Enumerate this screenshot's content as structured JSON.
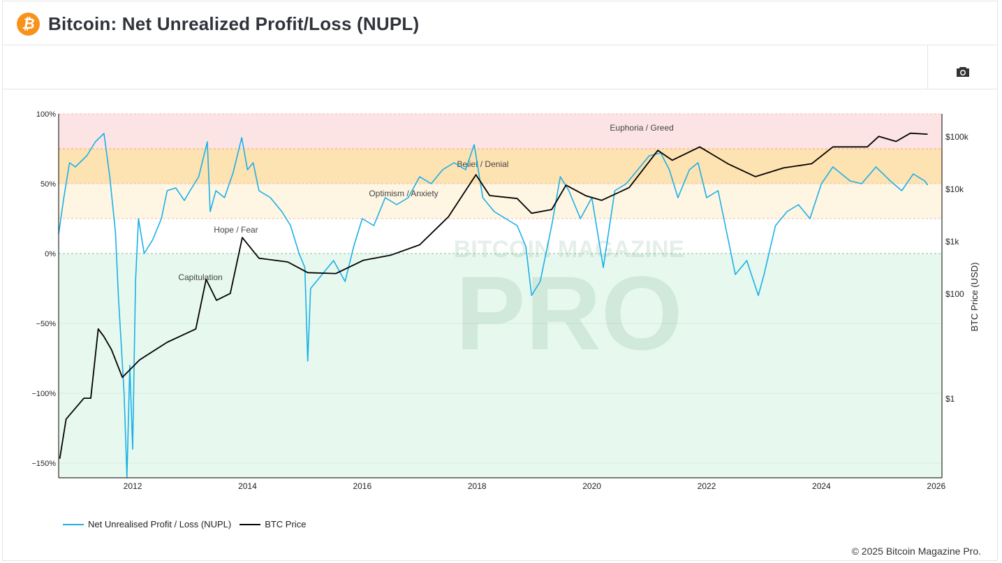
{
  "header": {
    "title": "Bitcoin: Net Unrealized Profit/Loss (NUPL)",
    "logo_glyph": "₿",
    "icon": "bitcoin-logo-icon"
  },
  "toolbar": {
    "screenshot_icon": "camera-icon"
  },
  "watermark": {
    "line1": "BITCOIN MAGAZINE",
    "line2": "PRO"
  },
  "legend": [
    {
      "label": "Net Unrealised Profit / Loss (NUPL)",
      "color": "#1ab0e8"
    },
    {
      "label": "BTC Price",
      "color": "#000000"
    }
  ],
  "footer": {
    "copyright": "© 2025 Bitcoin Magazine Pro."
  },
  "chart_data": {
    "type": "line",
    "title": "Bitcoin: Net Unrealized Profit/Loss (NUPL)",
    "xlabel": "",
    "ylabel": "",
    "y2label": "BTC Price (USD)",
    "xlim": [
      2010.71,
      2026.1
    ],
    "ylim": [
      -160.5,
      100
    ],
    "y2lim_log10": [
      -1.52,
      5.43
    ],
    "x_ticks": [
      "2012",
      "2014",
      "2016",
      "2018",
      "2020",
      "2022",
      "2024",
      "2026"
    ],
    "y_ticks": [
      "100%",
      "50%",
      "0%",
      "−50%",
      "−100%",
      "−150%"
    ],
    "y_tick_values": [
      100,
      50,
      0,
      -50,
      -100,
      -150
    ],
    "y2_ticks": [
      "$100k",
      "$10k",
      "$1k",
      "$100",
      "$1"
    ],
    "y2_tick_values": [
      100000,
      10000,
      1000,
      100,
      1
    ],
    "zones": [
      {
        "label": "Euphoria / Greed",
        "from": 75,
        "to": 100,
        "color": "#fde4e4",
        "label_x": 2020.87,
        "label_y": 90
      },
      {
        "label": "Belief / Denial",
        "from": 50,
        "to": 75,
        "color": "#fde2b2",
        "label_x": 2018.1,
        "label_y": 64
      },
      {
        "label": "Optimism / Anxiety",
        "from": 25,
        "to": 50,
        "color": "#fef5e2",
        "label_x": 2016.72,
        "label_y": 43
      },
      {
        "label": "Hope / Fear",
        "from": 0,
        "to": 25,
        "color": "#ffffff",
        "label_x": 2013.8,
        "label_y": 17
      },
      {
        "label": "Capitulation",
        "from": -160.5,
        "to": 0,
        "color": "#e7f8ee",
        "label_x": 2013.18,
        "label_y": -17
      }
    ],
    "series": [
      {
        "name": "Net Unrealised Profit / Loss (NUPL)",
        "axis": "left",
        "color": "#1ab0e8",
        "x": [
          2010.71,
          2010.8,
          2010.9,
          2011.0,
          2011.2,
          2011.35,
          2011.5,
          2011.6,
          2011.7,
          2011.75,
          2011.85,
          2011.9,
          2011.95,
          2012.0,
          2012.05,
          2012.1,
          2012.2,
          2012.35,
          2012.5,
          2012.6,
          2012.75,
          2012.9,
          2013.0,
          2013.15,
          2013.3,
          2013.35,
          2013.45,
          2013.6,
          2013.75,
          2013.9,
          2014.0,
          2014.1,
          2014.2,
          2014.4,
          2014.6,
          2014.75,
          2014.9,
          2015.0,
          2015.05,
          2015.1,
          2015.3,
          2015.5,
          2015.7,
          2015.85,
          2016.0,
          2016.2,
          2016.4,
          2016.6,
          2016.8,
          2017.0,
          2017.2,
          2017.4,
          2017.6,
          2017.8,
          2017.95,
          2018.1,
          2018.3,
          2018.5,
          2018.7,
          2018.85,
          2018.95,
          2019.1,
          2019.3,
          2019.45,
          2019.6,
          2019.8,
          2020.0,
          2020.2,
          2020.4,
          2020.6,
          2020.8,
          2021.0,
          2021.2,
          2021.35,
          2021.5,
          2021.7,
          2021.85,
          2022.0,
          2022.2,
          2022.35,
          2022.5,
          2022.7,
          2022.9,
          2023.0,
          2023.2,
          2023.4,
          2023.6,
          2023.8,
          2024.0,
          2024.2,
          2024.5,
          2024.7,
          2024.95,
          2025.2,
          2025.4,
          2025.6,
          2025.8,
          2025.85
        ],
        "values": [
          14,
          40,
          65,
          62,
          70,
          80,
          86,
          55,
          15,
          -30,
          -100,
          -160,
          -80,
          -140,
          -20,
          25,
          0,
          10,
          25,
          45,
          47,
          38,
          45,
          55,
          80,
          30,
          45,
          40,
          58,
          83,
          60,
          65,
          45,
          40,
          30,
          20,
          0,
          -10,
          -77,
          -25,
          -15,
          -5,
          -20,
          5,
          25,
          20,
          40,
          35,
          40,
          55,
          50,
          60,
          65,
          60,
          78,
          40,
          30,
          25,
          20,
          5,
          -30,
          -20,
          20,
          55,
          45,
          25,
          40,
          -10,
          45,
          50,
          60,
          70,
          72,
          60,
          40,
          60,
          65,
          40,
          45,
          15,
          -15,
          -5,
          -30,
          -15,
          20,
          30,
          35,
          25,
          50,
          62,
          52,
          50,
          62,
          52,
          45,
          57,
          52,
          49
        ]
      },
      {
        "name": "BTC Price",
        "axis": "right",
        "color": "#000000",
        "x": [
          2010.73,
          2010.84,
          2011.15,
          2011.27,
          2011.4,
          2011.5,
          2011.63,
          2011.82,
          2012.12,
          2012.6,
          2013.1,
          2013.28,
          2013.46,
          2013.7,
          2013.91,
          2014.2,
          2014.7,
          2015.05,
          2015.54,
          2016.02,
          2016.5,
          2017.0,
          2017.5,
          2017.98,
          2018.22,
          2018.7,
          2018.95,
          2019.3,
          2019.55,
          2019.9,
          2020.17,
          2020.65,
          2021.15,
          2021.4,
          2021.88,
          2022.37,
          2022.85,
          2023.34,
          2023.83,
          2024.2,
          2024.8,
          2025.0,
          2025.3,
          2025.55,
          2025.85
        ],
        "values": [
          0.07,
          0.4,
          1,
          1,
          21,
          15,
          8.5,
          2.5,
          5.4,
          11.7,
          21,
          186,
          74,
          100,
          1170,
          470,
          400,
          250,
          240,
          430,
          540,
          850,
          2900,
          18500,
          7400,
          6500,
          3400,
          4000,
          11700,
          7300,
          6000,
          10500,
          54000,
          35000,
          63000,
          30000,
          17000,
          25000,
          30000,
          63000,
          63000,
          100000,
          80000,
          115000,
          110000
        ]
      }
    ]
  }
}
